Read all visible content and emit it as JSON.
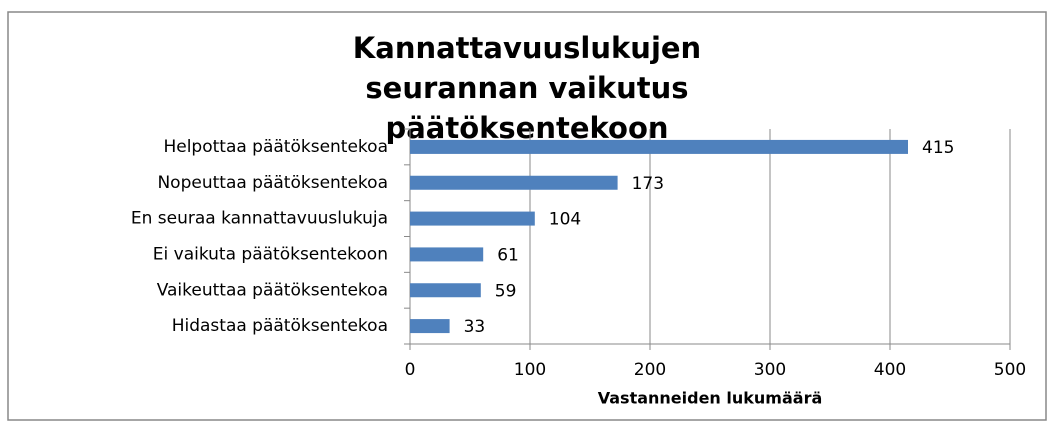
{
  "chart_data": {
    "type": "bar",
    "orientation": "horizontal",
    "title": "Kannattavuuslukujen seurannan vaikutus päätöksentekoon",
    "categories": [
      "Helpottaa päätöksentekoa",
      "Nopeuttaa päätöksentekoa",
      "En seuraa kannattavuuslukuja",
      "Ei vaikuta päätöksentekoon",
      "Vaikeuttaa päätöksentekoa",
      "Hidastaa päätöksentekoa"
    ],
    "values": [
      415,
      173,
      104,
      61,
      59,
      33
    ],
    "color": "#4f81bd",
    "xlabel": "Vastanneiden lukumäärä",
    "xlim": [
      0,
      500
    ],
    "xticks": [
      0,
      100,
      200,
      300,
      400,
      500
    ],
    "grid": true
  }
}
